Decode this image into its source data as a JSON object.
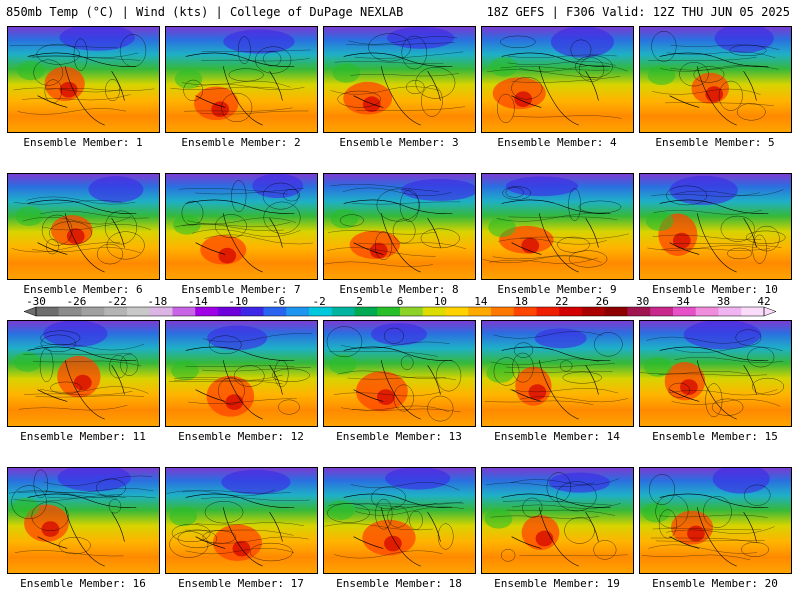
{
  "header": {
    "title": "850mb Temp (°C) | Wind (kts) | College of DuPage NEXLAB",
    "run_info": "18Z GEFS | F306 Valid: 12Z THU JUN 05 2025"
  },
  "members": [
    {
      "label": "Ensemble Member: 1"
    },
    {
      "label": "Ensemble Member: 2"
    },
    {
      "label": "Ensemble Member: 3"
    },
    {
      "label": "Ensemble Member: 4"
    },
    {
      "label": "Ensemble Member: 5"
    },
    {
      "label": "Ensemble Member: 6"
    },
    {
      "label": "Ensemble Member: 7"
    },
    {
      "label": "Ensemble Member: 8"
    },
    {
      "label": "Ensemble Member: 9"
    },
    {
      "label": "Ensemble Member: 10"
    },
    {
      "label": "Ensemble Member: 11"
    },
    {
      "label": "Ensemble Member: 12"
    },
    {
      "label": "Ensemble Member: 13"
    },
    {
      "label": "Ensemble Member: 14"
    },
    {
      "label": "Ensemble Member: 15"
    },
    {
      "label": "Ensemble Member: 16"
    },
    {
      "label": "Ensemble Member: 17"
    },
    {
      "label": "Ensemble Member: 18"
    },
    {
      "label": "Ensemble Member: 19"
    },
    {
      "label": "Ensemble Member: 20"
    }
  ],
  "color_scale": {
    "ticks": [
      "-30",
      "-26",
      "-22",
      "-18",
      "-14",
      "-10",
      "-6",
      "-2",
      "2",
      "6",
      "10",
      "14",
      "18",
      "22",
      "26",
      "30",
      "34",
      "38",
      "42"
    ],
    "colors": [
      "#6e6e6e",
      "#8c8c8c",
      "#a0a0a0",
      "#b4b4b4",
      "#c8c8c8",
      "#dcb4e6",
      "#c864e6",
      "#a000e6",
      "#6e00dc",
      "#3c28e6",
      "#2864f0",
      "#1e96f0",
      "#00c8dc",
      "#00b4a0",
      "#00aa50",
      "#28be28",
      "#8cd228",
      "#dcdc00",
      "#ffd200",
      "#ffaa00",
      "#ff7800",
      "#ff4600",
      "#f01e00",
      "#d20000",
      "#aa0000",
      "#8c0000",
      "#a01450",
      "#c8288c",
      "#e650c8",
      "#f08cdc",
      "#f0b4f0",
      "#fadcfa"
    ]
  }
}
